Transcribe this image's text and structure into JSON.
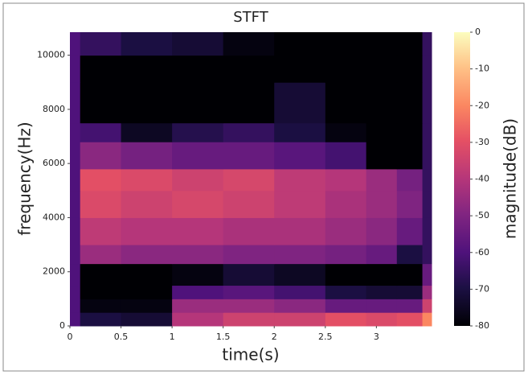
{
  "chart_data": {
    "type": "heatmap",
    "title": "STFT",
    "x_label": "time(s)",
    "y_label": "frequency(Hz)",
    "colorbar_label": "magnitude(dB)",
    "colormap": "magma",
    "xlim": [
      0,
      3.54
    ],
    "xticks": [
      0,
      0.5,
      1,
      1.5,
      2,
      2.5,
      3
    ],
    "ylim": [
      0,
      10850
    ],
    "yticks": [
      0,
      2000,
      4000,
      6000,
      8000,
      10000
    ],
    "clim": [
      -80,
      0
    ],
    "cticks": [
      0,
      -10,
      -20,
      -30,
      -40,
      -50,
      -60,
      -70,
      -80
    ],
    "xbins": [
      0,
      0.1,
      0.5,
      1,
      1.5,
      2,
      2.5,
      2.9,
      3.2,
      3.45,
      3.54
    ],
    "ybins": [
      0,
      500,
      1000,
      1500,
      2300,
      3000,
      4000,
      5000,
      5800,
      6800,
      7500,
      9000,
      10000,
      10850
    ],
    "z": [
      [
        -60,
        -70,
        -72,
        -40,
        -35,
        -35,
        -30,
        -32,
        -30,
        -20
      ],
      [
        -60,
        -78,
        -78,
        -45,
        -45,
        -48,
        -55,
        -55,
        -55,
        -35
      ],
      [
        -60,
        -80,
        -80,
        -60,
        -58,
        -62,
        -70,
        -72,
        -72,
        -45
      ],
      [
        -60,
        -80,
        -80,
        -78,
        -72,
        -75,
        -80,
        -80,
        -80,
        -55
      ],
      [
        -60,
        -45,
        -48,
        -48,
        -50,
        -50,
        -52,
        -55,
        -70,
        -65
      ],
      [
        -60,
        -38,
        -40,
        -40,
        -42,
        -42,
        -45,
        -48,
        -55,
        -65
      ],
      [
        -60,
        -32,
        -35,
        -33,
        -35,
        -38,
        -42,
        -45,
        -50,
        -65
      ],
      [
        -60,
        -30,
        -32,
        -35,
        -33,
        -38,
        -40,
        -45,
        -52,
        -65
      ],
      [
        -60,
        -48,
        -52,
        -55,
        -55,
        -58,
        -62,
        -80,
        -80,
        -65
      ],
      [
        -60,
        -62,
        -75,
        -68,
        -65,
        -70,
        -78,
        -80,
        -80,
        -65
      ],
      [
        -60,
        -80,
        -80,
        -80,
        -80,
        -72,
        -80,
        -80,
        -80,
        -65
      ],
      [
        -60,
        -80,
        -80,
        -80,
        -80,
        -80,
        -80,
        -80,
        -80,
        -65
      ],
      [
        -60,
        -65,
        -70,
        -72,
        -78,
        -80,
        -80,
        -80,
        -80,
        -65
      ]
    ]
  }
}
